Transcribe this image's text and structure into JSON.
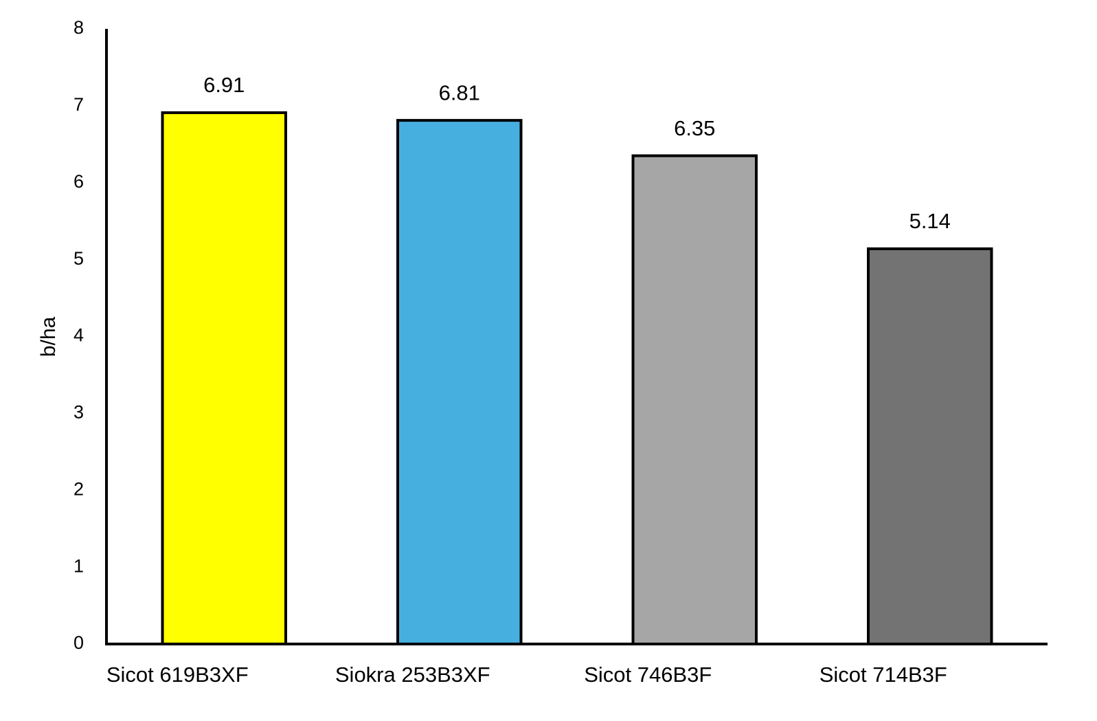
{
  "chart_data": {
    "type": "bar",
    "y_label": "b/ha",
    "categories": [
      "Sicot 619B3XF",
      "Siokra 253B3XF",
      "Sicot 746B3F",
      "Sicot 714B3F"
    ],
    "values": [
      6.91,
      6.81,
      6.35,
      5.14
    ],
    "colors": [
      "#ffff00",
      "#47afe0",
      "#a6a6a6",
      "#737373"
    ],
    "edge_color": "#000000",
    "ylim": [
      0,
      8
    ],
    "yticks": [
      0,
      1,
      2,
      3,
      4,
      5,
      6,
      7,
      8
    ],
    "grid": false
  }
}
